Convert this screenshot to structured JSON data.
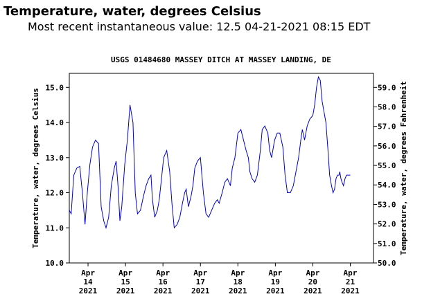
{
  "header": {
    "title": "Temperature, water, degrees Celsius",
    "subtitle": "Most recent instantaneous value: 12.5 04-21-2021   08:15 EDT"
  },
  "chart_data": {
    "type": "line",
    "title": "USGS 01484680 MASSEY DITCH AT MASSEY LANDING, DE",
    "ylabel": "Temperature, water, degrees Celsius",
    "ylabel_right": "Temperature, water, degrees Fahrenheit",
    "ylim": [
      10.0,
      15.4
    ],
    "ylim_right": [
      50.0,
      59.72
    ],
    "xlim": [
      13.5,
      21.62
    ],
    "y_ticks": [
      "10.0",
      "11.0",
      "12.0",
      "13.0",
      "14.0",
      "15.0"
    ],
    "y_ticks_right": [
      "50.0",
      "51.0",
      "52.0",
      "53.0",
      "54.0",
      "55.0",
      "56.0",
      "57.0",
      "58.0",
      "59.0"
    ],
    "x_ticks": [
      {
        "day": 14,
        "line1": "Apr",
        "line2": "14",
        "line3": "2021"
      },
      {
        "day": 15,
        "line1": "Apr",
        "line2": "15",
        "line3": "2021"
      },
      {
        "day": 16,
        "line1": "Apr",
        "line2": "16",
        "line3": "2021"
      },
      {
        "day": 17,
        "line1": "Apr",
        "line2": "17",
        "line3": "2021"
      },
      {
        "day": 18,
        "line1": "Apr",
        "line2": "18",
        "line3": "2021"
      },
      {
        "day": 19,
        "line1": "Apr",
        "line2": "19",
        "line3": "2021"
      },
      {
        "day": 20,
        "line1": "Apr",
        "line2": "20",
        "line3": "2021"
      },
      {
        "day": 21,
        "line1": "Apr",
        "line2": "21",
        "line3": "2021"
      }
    ],
    "series_color": "#0000cc",
    "series": [
      {
        "x": [
          13.5,
          13.55,
          13.62,
          13.7,
          13.78,
          13.85,
          13.92,
          13.98,
          14.05,
          14.12,
          14.2,
          14.28,
          14.35,
          14.42,
          14.48,
          14.55,
          14.62,
          14.7,
          14.75,
          14.8,
          14.85,
          14.9,
          14.98,
          15.05,
          15.12,
          15.2,
          15.26,
          15.32,
          15.4,
          15.48,
          15.55,
          15.62,
          15.68,
          15.72,
          15.78,
          15.85,
          15.9,
          15.95,
          16.02,
          16.1,
          16.18,
          16.24,
          16.3,
          16.38,
          16.45,
          16.52,
          16.58,
          16.62,
          16.68,
          16.75,
          16.8,
          16.85,
          16.92,
          17.0,
          17.08,
          17.15,
          17.22,
          17.3,
          17.38,
          17.45,
          17.5,
          17.58,
          17.65,
          17.72,
          17.8,
          17.85,
          17.92,
          18.0,
          18.08,
          18.15,
          18.22,
          18.28,
          18.32,
          18.38,
          18.45,
          18.52,
          18.6,
          18.65,
          18.72,
          18.8,
          18.85,
          18.9,
          18.98,
          19.05,
          19.12,
          19.2,
          19.26,
          19.32,
          19.4,
          19.48,
          19.55,
          19.62,
          19.68,
          19.72,
          19.78,
          19.85,
          19.92,
          20.0,
          20.05,
          20.1,
          20.15,
          20.2,
          20.25,
          20.3,
          20.35,
          20.4,
          20.45,
          20.5,
          20.54,
          20.58,
          20.62,
          20.66,
          20.7,
          20.72,
          20.75,
          20.78,
          20.82,
          20.86,
          20.9,
          20.95,
          21.0
        ],
        "y": [
          11.5,
          11.4,
          12.5,
          12.7,
          12.75,
          12.0,
          11.1,
          12.0,
          12.8,
          13.3,
          13.5,
          13.4,
          11.6,
          11.2,
          11.0,
          11.3,
          12.2,
          12.7,
          12.9,
          12.2,
          11.2,
          11.6,
          12.8,
          13.5,
          14.5,
          14.0,
          12.0,
          11.4,
          11.5,
          11.9,
          12.2,
          12.4,
          12.5,
          11.8,
          11.3,
          11.5,
          11.8,
          12.3,
          13.0,
          13.2,
          12.6,
          11.7,
          11.0,
          11.1,
          11.3,
          11.7,
          12.0,
          12.1,
          11.6,
          11.9,
          12.2,
          12.7,
          12.9,
          13.0,
          12.0,
          11.4,
          11.3,
          11.5,
          11.7,
          11.8,
          11.7,
          12.0,
          12.3,
          12.4,
          12.2,
          12.7,
          13.0,
          13.7,
          13.8,
          13.5,
          13.2,
          13.0,
          12.6,
          12.4,
          12.3,
          12.5,
          13.2,
          13.8,
          13.9,
          13.7,
          13.2,
          13.0,
          13.5,
          13.7,
          13.7,
          13.3,
          12.5,
          12.0,
          12.0,
          12.2,
          12.6,
          13.0,
          13.5,
          13.8,
          13.5,
          13.9,
          14.1,
          14.2,
          14.5,
          15.0,
          15.3,
          15.2,
          14.6,
          14.3,
          14.0,
          13.3,
          12.5,
          12.2,
          12.0,
          12.1,
          12.4,
          12.5,
          12.5,
          12.6,
          12.4,
          12.3,
          12.2,
          12.4,
          12.5,
          12.5,
          12.5
        ]
      }
    ],
    "grid": false
  }
}
